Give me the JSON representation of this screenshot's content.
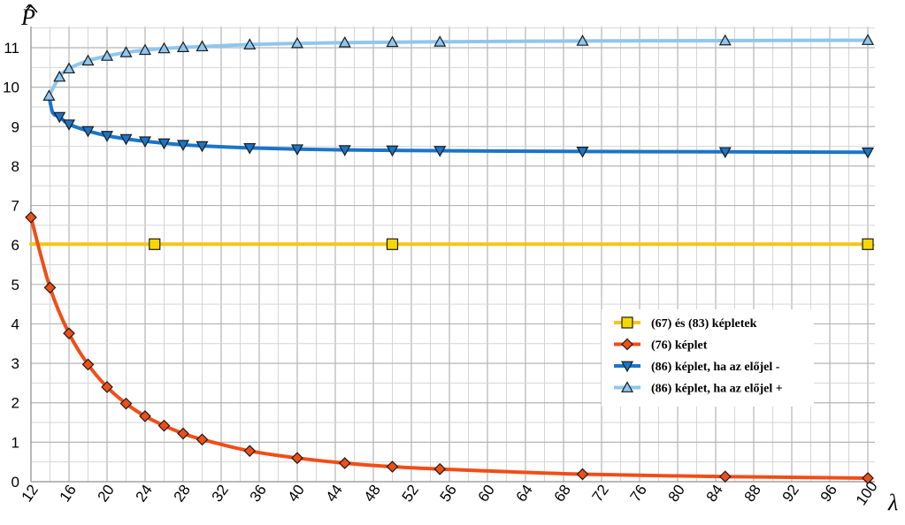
{
  "chart_data": {
    "type": "line",
    "xlabel": "λ",
    "ylabel": "P̂",
    "xlim": [
      12,
      100
    ],
    "ylim": [
      0,
      11.5
    ],
    "xticks": [
      12,
      16,
      20,
      24,
      28,
      32,
      36,
      40,
      44,
      48,
      52,
      56,
      60,
      64,
      68,
      72,
      76,
      80,
      84,
      88,
      92,
      96,
      100
    ],
    "xtick_labels": [
      "12",
      "16",
      "20",
      "24",
      "28",
      "32",
      "36",
      "40",
      "44",
      "48",
      "52",
      "56",
      "60",
      "64",
      "68",
      "72",
      "76",
      "80",
      "84",
      "88",
      "92",
      "96",
      "100"
    ],
    "yticks": [
      0,
      1,
      2,
      3,
      4,
      5,
      6,
      7,
      8,
      9,
      10,
      11
    ],
    "ytick_labels": [
      "0",
      "1",
      "2",
      "3",
      "4",
      "5",
      "6",
      "7",
      "8",
      "9",
      "10",
      "11"
    ],
    "grid": true,
    "minor_grid_step_x": 2,
    "legend_position": "right",
    "series": [
      {
        "name": "(67) és (83) képletek",
        "color": "#f5c518",
        "marker_color": "#f5d800",
        "marker": "square",
        "x": [
          12,
          25,
          50,
          100
        ],
        "y": [
          6.02,
          6.02,
          6.02,
          6.02
        ],
        "marker_x": [
          25,
          50,
          100
        ],
        "marker_y": [
          6.02,
          6.02,
          6.02
        ]
      },
      {
        "name": "(76) képlet",
        "color": "#f04e17",
        "marker_color": "#f04e17",
        "marker": "diamond",
        "x": [
          12,
          14,
          16,
          18,
          20,
          22,
          24,
          26,
          28,
          30,
          35,
          40,
          45,
          50,
          55,
          70,
          85,
          100
        ],
        "y": [
          6.7,
          4.92,
          3.76,
          2.97,
          2.4,
          1.98,
          1.66,
          1.42,
          1.22,
          1.07,
          0.78,
          0.6,
          0.47,
          0.38,
          0.32,
          0.19,
          0.13,
          0.09
        ],
        "marker_x": [
          12,
          14,
          16,
          18,
          20,
          22,
          24,
          26,
          28,
          30,
          35,
          40,
          45,
          50,
          55,
          70,
          85,
          100
        ],
        "marker_y": [
          6.7,
          4.92,
          3.76,
          2.97,
          2.4,
          1.98,
          1.66,
          1.42,
          1.22,
          1.07,
          0.78,
          0.6,
          0.47,
          0.38,
          0.32,
          0.19,
          0.13,
          0.09
        ]
      },
      {
        "name": "(86) képlet, ha az előjel -",
        "color": "#1b75c8",
        "marker_color": "#1b75c8",
        "marker": "triangle-down",
        "x": [
          13.9,
          14.3,
          15,
          16,
          18,
          20,
          22,
          24,
          26,
          28,
          30,
          35,
          40,
          45,
          50,
          55,
          70,
          85,
          100
        ],
        "y": [
          9.78,
          9.35,
          9.25,
          9.06,
          8.89,
          8.77,
          8.69,
          8.63,
          8.58,
          8.54,
          8.51,
          8.46,
          8.43,
          8.41,
          8.4,
          8.39,
          8.37,
          8.36,
          8.35
        ],
        "marker_x": [
          15,
          16,
          18,
          20,
          22,
          24,
          26,
          28,
          30,
          35,
          40,
          45,
          50,
          55,
          70,
          85,
          100
        ],
        "marker_y": [
          9.25,
          9.06,
          8.89,
          8.77,
          8.69,
          8.63,
          8.58,
          8.54,
          8.51,
          8.46,
          8.43,
          8.41,
          8.4,
          8.39,
          8.37,
          8.36,
          8.35
        ]
      },
      {
        "name": "(86) képlet, ha az előjel +",
        "color": "#8ec7f0",
        "marker_color": "#8ec7f0",
        "marker": "triangle-up",
        "x": [
          13.9,
          15,
          16,
          18,
          20,
          22,
          24,
          26,
          28,
          30,
          35,
          40,
          45,
          50,
          55,
          70,
          85,
          100
        ],
        "y": [
          9.78,
          10.26,
          10.47,
          10.67,
          10.79,
          10.88,
          10.94,
          10.98,
          11.01,
          11.03,
          11.08,
          11.11,
          11.13,
          11.14,
          11.15,
          11.17,
          11.18,
          11.19
        ],
        "marker_x": [
          13.9,
          15,
          16,
          18,
          20,
          22,
          24,
          26,
          28,
          30,
          35,
          40,
          45,
          50,
          55,
          70,
          85,
          100
        ],
        "marker_y": [
          9.78,
          10.26,
          10.47,
          10.67,
          10.79,
          10.88,
          10.94,
          10.98,
          11.01,
          11.03,
          11.08,
          11.11,
          11.13,
          11.14,
          11.15,
          11.17,
          11.18,
          11.19
        ]
      }
    ]
  }
}
